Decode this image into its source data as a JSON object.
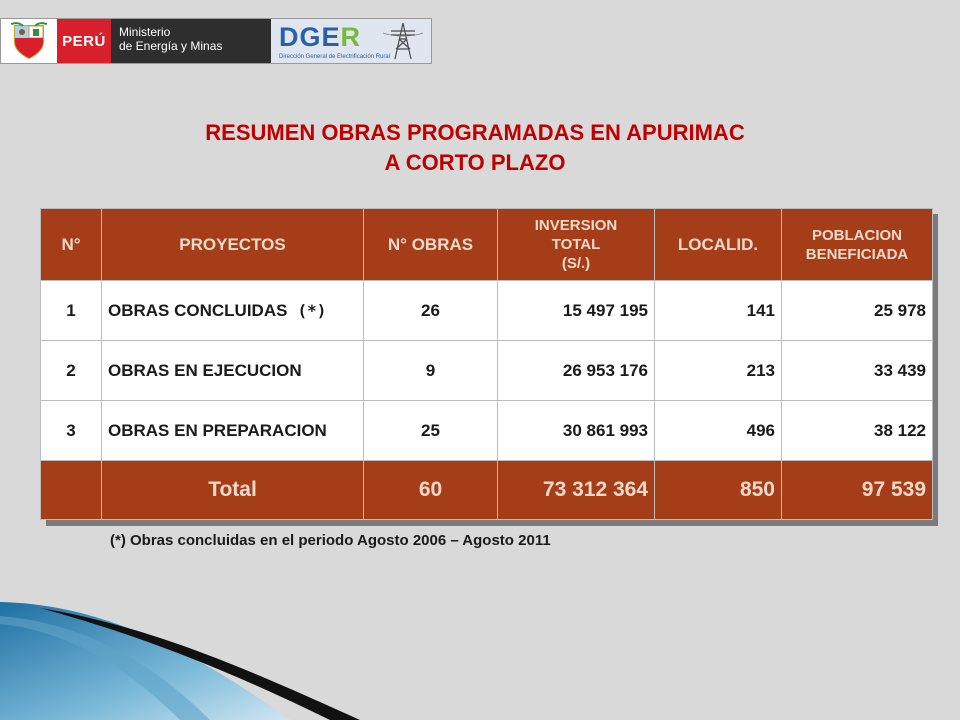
{
  "header": {
    "peru_label": "PERÚ",
    "ministry_line1": "Ministerio",
    "ministry_line2": "de Energía y Minas",
    "dger_part1": "DGE",
    "dger_part2": "R",
    "dger_subtitle": "Dirección General de Electrificación Rural"
  },
  "title": {
    "line1": "RESUMEN OBRAS PROGRAMADAS EN APURIMAC",
    "line2": "A CORTO PLAZO"
  },
  "table": {
    "headers": {
      "num": "N°",
      "proyectos": "PROYECTOS",
      "obras": "N° OBRAS",
      "inversion_l1": "INVERSION",
      "inversion_l2": "TOTAL",
      "inversion_l3": "(S/.)",
      "localid": "LOCALID.",
      "poblacion_l1": "POBLACION",
      "poblacion_l2": "BENEFICIADA"
    },
    "rows": [
      {
        "num": "1",
        "proyecto": "OBRAS CONCLUIDAS",
        "mark": "(*)",
        "obras": "26",
        "inversion": "15 497 195",
        "localid": "141",
        "poblacion": "25 978"
      },
      {
        "num": "2",
        "proyecto": "OBRAS EN EJECUCION",
        "obras": "9",
        "inversion": "26 953 176",
        "localid": "213",
        "poblacion": "33 439"
      },
      {
        "num": "3",
        "proyecto": "OBRAS EN PREPARACION",
        "obras": "25",
        "inversion": "30 861 993",
        "localid": "496",
        "poblacion": "38 122"
      }
    ],
    "total": {
      "label": "Total",
      "obras": "60",
      "inversion": "73 312 364",
      "localid": "850",
      "poblacion": "97 539"
    }
  },
  "footnote": "(*) Obras concluidas en el periodo Agosto 2006 – Agosto 2011",
  "colors": {
    "title": "#c00000",
    "header_fill": "#a53e18",
    "header_text": "#f4d9c9",
    "background": "#d9d9d9"
  }
}
